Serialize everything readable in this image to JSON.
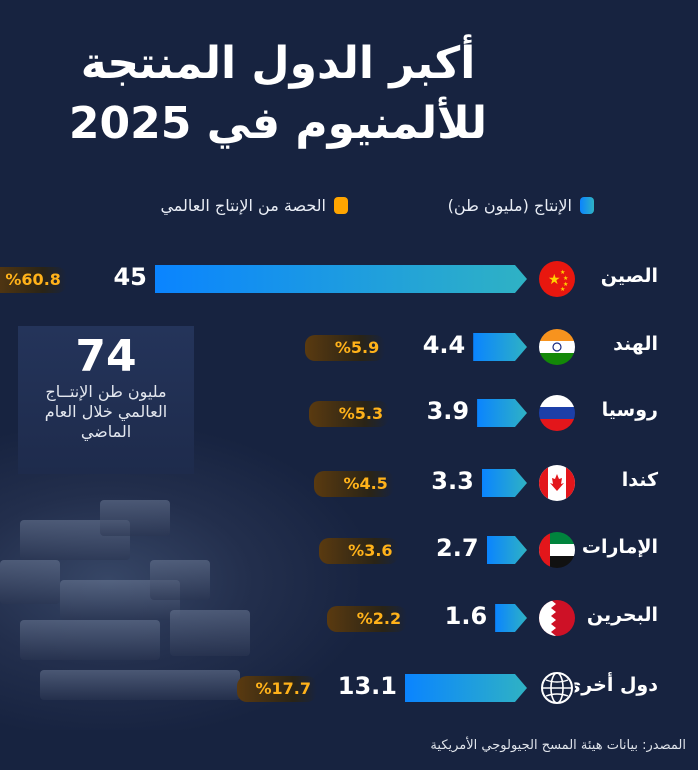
{
  "title_line1": "أكبر الدول المنتجة",
  "title_line2": "للألمنيوم في 2025",
  "legend": [
    {
      "label": "الإنتاج (مليون طن)",
      "color": "#0a84ff"
    },
    {
      "label": "الحصة من الإنتاج العالمي",
      "color": "#ffa500"
    }
  ],
  "stat": {
    "value": "74",
    "text": "مليون طن الإنتــاج العالمي خلال العام الماضي"
  },
  "chart_data": {
    "type": "bar",
    "orientation": "horizontal",
    "categories": [
      "الصين",
      "الهند",
      "روسيا",
      "كندا",
      "الإمارات",
      "البحرين",
      "دول أخرى"
    ],
    "flags": [
      "china-flag",
      "india-flag",
      "russia-flag",
      "canada-flag",
      "uae-flag",
      "bahrain-flag",
      "globe"
    ],
    "series": [
      {
        "name": "الإنتاج (مليون طن)",
        "values": [
          45,
          4.4,
          3.9,
          3.3,
          2.7,
          1.6,
          13.1
        ],
        "labels": [
          "45",
          "4.4",
          "3.9",
          "3.3",
          "2.7",
          "1.6",
          "13.1"
        ]
      },
      {
        "name": "الحصة من الإنتاج العالمي",
        "values": [
          60.8,
          5.9,
          5.3,
          4.5,
          3.6,
          2.2,
          17.7
        ],
        "labels": [
          "%60.8",
          "%5.9",
          "%5.3",
          "%4.5",
          "%3.6",
          "%2.2",
          "%17.7"
        ]
      }
    ]
  },
  "source": "المصدر: بيانات هيئة المسح الجيولوجي الأمريكية"
}
